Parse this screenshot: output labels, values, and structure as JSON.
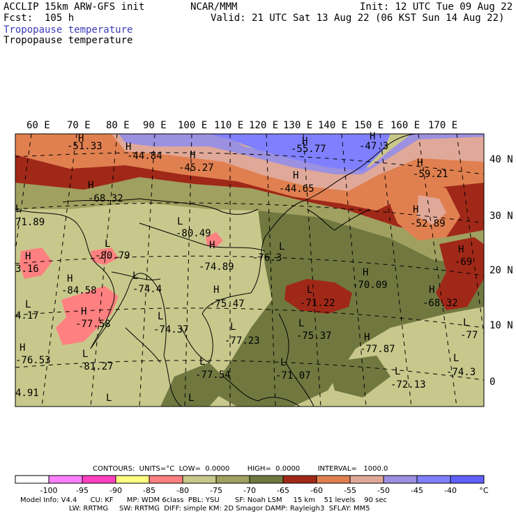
{
  "header": {
    "model": "ACCLIP 15km ARW-GFS init",
    "forecast": "Fcst:  105 h",
    "org": "NCAR/MMM",
    "init": "Init: 12 UTC Tue 09 Aug 22",
    "valid": "Valid: 21 UTC Sat 13 Aug 22 (06 KST Sun 14 Aug 22)",
    "field1": "Tropopause temperature",
    "field2": "Tropopause temperature"
  },
  "lon_labels": [
    "60 E",
    "70 E",
    "80 E",
    "90 E",
    "100 E",
    "110 E",
    "120 E",
    "130 E",
    "140 E",
    "150 E",
    "160 E",
    "170 E"
  ],
  "lat_labels": [
    "40 N",
    "30 N",
    "20 N",
    "10 N",
    "0"
  ],
  "map_labels": [
    {
      "t": "-51.33"
    },
    {
      "t": "-44.84"
    },
    {
      "t": "-45.27"
    },
    {
      "t": "-55.77"
    },
    {
      "t": "-47.3"
    },
    {
      "t": "-44.65"
    },
    {
      "t": "-59.21"
    },
    {
      "t": "-68.32"
    },
    {
      "t": "-52.89"
    },
    {
      "t": "71.89"
    },
    {
      "t": "-80.49"
    },
    {
      "t": "-80.79"
    },
    {
      "t": "-74.89"
    },
    {
      "t": "-76.3"
    },
    {
      "t": "-69"
    },
    {
      "t": "3.16"
    },
    {
      "t": "-84.58"
    },
    {
      "t": "-74.4"
    },
    {
      "t": "-70.09"
    },
    {
      "t": "-75.47"
    },
    {
      "t": "-71.22"
    },
    {
      "t": "-68.32"
    },
    {
      "t": "4.17"
    },
    {
      "t": "-77.58"
    },
    {
      "t": "-74.37"
    },
    {
      "t": "-75.37"
    },
    {
      "t": "-77.23"
    },
    {
      "t": "-77.87"
    },
    {
      "t": "-77"
    },
    {
      "t": "-76.53"
    },
    {
      "t": "-81.27"
    },
    {
      "t": "-74.3"
    },
    {
      "t": "-77.54"
    },
    {
      "t": "-71.07"
    },
    {
      "t": "-72.13"
    },
    {
      "t": "4.91"
    }
  ],
  "hl_labels": [
    "H",
    "L"
  ],
  "contours_line": "CONTOURS:  UNITS=°C  LOW=  0.0000        HIGH=  0.0000        INTERVAL=   1000.0",
  "colorbar": {
    "colors": [
      "#ffffff",
      "#ff80ff",
      "#ff40c0",
      "#ffff80",
      "#ff8080",
      "#c8c88c",
      "#a0a060",
      "#707840",
      "#a02818",
      "#e08050",
      "#e0a898",
      "#9c90e0",
      "#8080ff",
      "#6060ff"
    ],
    "ticks": [
      "-100",
      "-95",
      "-90",
      "-85",
      "-80",
      "-75",
      "-70",
      "-65",
      "-60",
      "-55",
      "-50",
      "-45",
      "-40"
    ],
    "unit": "°C"
  },
  "footer": {
    "line1": "Model Info: V4.4      CU: KF      MP: WDM 6class  PBL: YSU       SF: Noah LSM     15 km    51 levels    90 sec",
    "line2": "                      LW: RRTMG     SW: RRTMG  DIFF: simple KM: 2D Smagor DAMP: Rayleigh3  SFLAY: MM5"
  },
  "map_colors": {
    "olive_dark": "#707840",
    "olive_mid": "#a0a060",
    "khaki": "#c8c88c",
    "pink": "#ff8080",
    "red": "#a02818",
    "orange": "#e08050",
    "rose": "#e0a898",
    "lavender": "#9c90e0",
    "blue": "#8080ff"
  }
}
